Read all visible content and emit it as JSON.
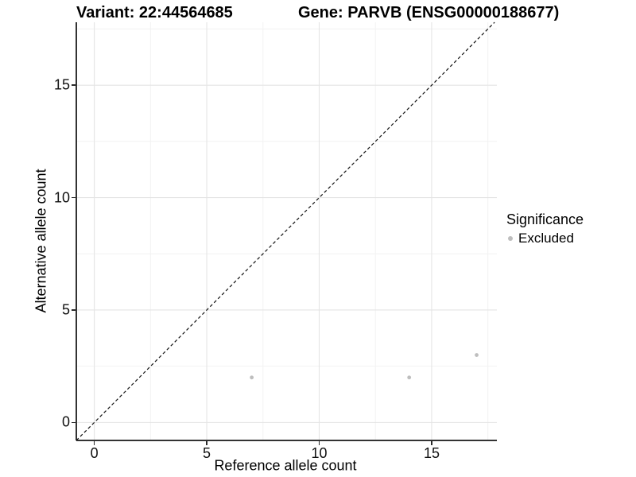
{
  "chart_data": {
    "type": "scatter",
    "title_left": "Variant: 22:44564685",
    "title_right": "Gene: PARVB (ENSG00000188677)",
    "xlabel": "Reference allele count",
    "ylabel": "Alternative allele count",
    "xlim": [
      -0.8,
      17.9
    ],
    "ylim": [
      -0.8,
      17.8
    ],
    "x_major_ticks": [
      0,
      5,
      10,
      15
    ],
    "y_major_ticks": [
      0,
      5,
      10,
      15
    ],
    "x_minor_gridlines": [
      2.5,
      7.5,
      12.5,
      17.5
    ],
    "y_minor_gridlines": [
      2.5,
      7.5,
      12.5,
      17.5
    ],
    "grid": true,
    "reference_line": {
      "slope": 1,
      "intercept": 0,
      "style": "dashed"
    },
    "series": [
      {
        "name": "Excluded",
        "color": "#bebebe",
        "points": [
          {
            "x": 7,
            "y": 2
          },
          {
            "x": 14,
            "y": 2
          },
          {
            "x": 17,
            "y": 3
          }
        ]
      }
    ],
    "legend": {
      "title": "Significance",
      "position": "right",
      "entries": [
        {
          "label": "Excluded",
          "color": "#bebebe"
        }
      ]
    },
    "colors": {
      "background": "#ffffff",
      "major_grid": "#e4e4e4",
      "minor_grid": "#f2f2f2",
      "axis": "#333333",
      "reference_line": "#111111",
      "point": "#bebebe",
      "text": "#000000"
    }
  }
}
